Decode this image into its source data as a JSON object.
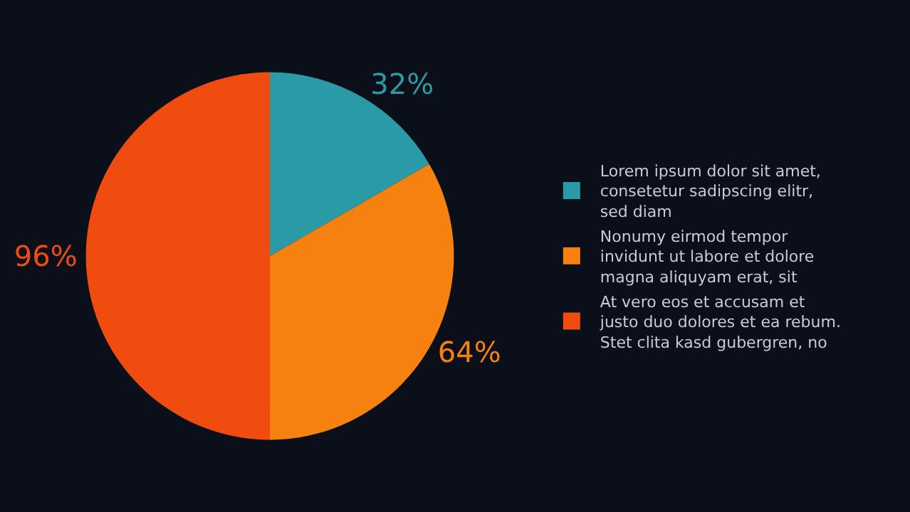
{
  "chart_data": {
    "type": "pie",
    "categories": [
      "Lorem ipsum dolor sit amet,\nconsetetur sadipscing elitr,\nsed diam",
      "Nonumy eirmod tempor\ninvidunt ut labore et dolore\nmagna aliquyam erat, sit",
      "At vero eos et accusam et\njusto duo dolores et ea rebum.\nStet clita kasd gubergren, no"
    ],
    "values": [
      32,
      64,
      96
    ],
    "value_labels": [
      "32%",
      "64%",
      "96%"
    ],
    "colors": [
      "#2a9ba6",
      "#f5820f",
      "#f04c10"
    ],
    "legend": "right"
  }
}
